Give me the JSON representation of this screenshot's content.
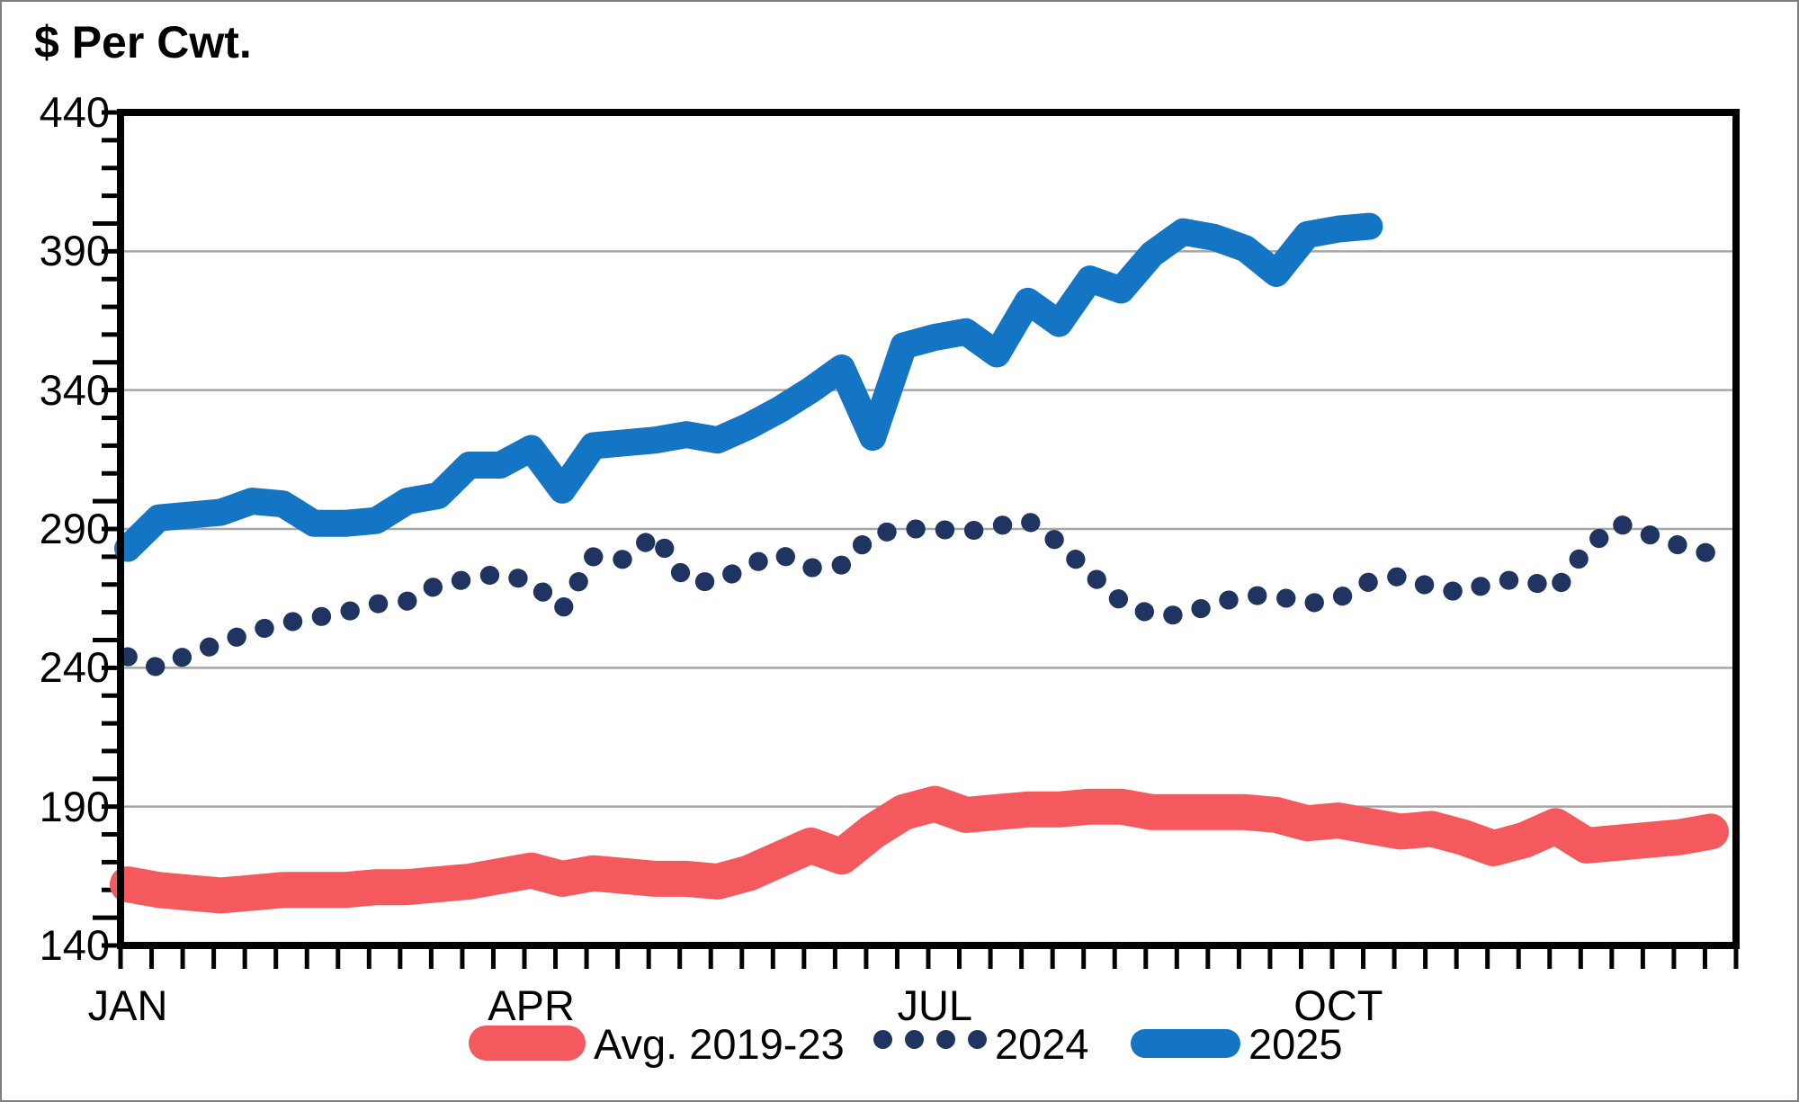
{
  "title": "$ Per Cwt.",
  "chart_data": {
    "type": "line",
    "title": "$ Per Cwt.",
    "xlabel": "",
    "ylabel": "$ Per Cwt.",
    "grid": "horizontal-major",
    "legend_position": "bottom-center",
    "y_axis": {
      "min": 140,
      "max": 440,
      "major_step": 50,
      "minor_step": 10,
      "major_tick_labels": [
        "440",
        "390",
        "340",
        "290",
        "240",
        "190",
        "140"
      ]
    },
    "x_axis": {
      "unit": "weekly",
      "weeks": 52,
      "minor_ticks": 52,
      "month_labels": [
        {
          "label": "JAN",
          "week": 1
        },
        {
          "label": "APR",
          "week": 14
        },
        {
          "label": "JUL",
          "week": 27
        },
        {
          "label": "OCT",
          "week": 40
        }
      ]
    },
    "series": [
      {
        "name": "Avg. 2019-23",
        "color": "#f4595e",
        "style": "solid-thick",
        "start_week": 1,
        "values": [
          162,
          160,
          159,
          158,
          159,
          160,
          160,
          160,
          161,
          161,
          162,
          163,
          165,
          167,
          164,
          166,
          165,
          164,
          164,
          163,
          166,
          171,
          176,
          172,
          181,
          188,
          191,
          187,
          188,
          189,
          189,
          190,
          190,
          188,
          188,
          188,
          188,
          187,
          184,
          185,
          183,
          181,
          182,
          179,
          175,
          178,
          183,
          176,
          177,
          178,
          179,
          181
        ]
      },
      {
        "name": "2024",
        "color": "#1f3460",
        "style": "dotted",
        "start_week": 1,
        "values": [
          244,
          240,
          245,
          249,
          253,
          256,
          258,
          260,
          263,
          264,
          270,
          272,
          274,
          271,
          261,
          280,
          279,
          288,
          271,
          271,
          277,
          281,
          276,
          277,
          288,
          290,
          290,
          289,
          291,
          293,
          285,
          274,
          264,
          259,
          259,
          263,
          266,
          266,
          263,
          265,
          271,
          273,
          269,
          267,
          271,
          272,
          268,
          283,
          292,
          288,
          284,
          281
        ]
      },
      {
        "name": "2025",
        "color": "#1575c5",
        "style": "solid",
        "start_week": 1,
        "values": [
          283,
          294,
          295,
          296,
          300,
          299,
          292,
          292,
          293,
          300,
          302,
          313,
          313,
          319,
          304,
          320,
          321,
          322,
          324,
          322,
          327,
          333,
          340,
          348,
          323,
          356,
          359,
          361,
          353,
          372,
          364,
          380,
          376,
          389,
          397,
          395,
          391,
          382,
          396,
          398,
          399
        ]
      }
    ]
  },
  "colors": {
    "background": "#ffffff",
    "frame": "#7f7f7f",
    "plot_border": "#000000",
    "gridline": "#a6a6a6",
    "tick": "#000000",
    "text": "#000000"
  }
}
